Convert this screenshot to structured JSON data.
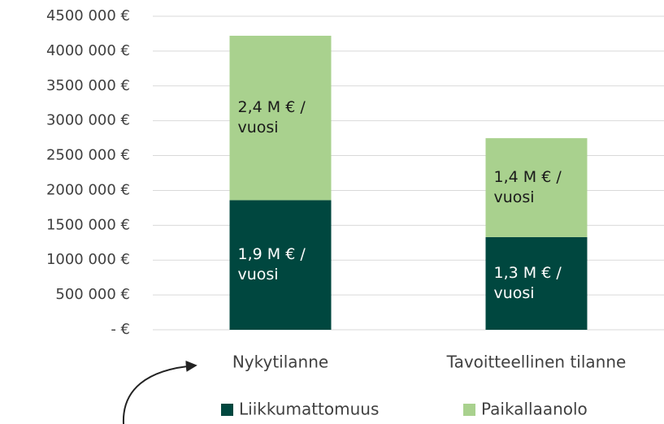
{
  "chart_data": {
    "type": "stacked_bar",
    "categories": [
      "Nykytilanne",
      "Tavoitteellinen tilanne"
    ],
    "series": [
      {
        "name": "Liikkumattomuus",
        "color": "#00473f",
        "values": [
          1860000,
          1330000
        ],
        "value_labels": [
          "1,9 M € / vuosi",
          "1,3 M € / vuosi"
        ]
      },
      {
        "name": "Paikallaanolo",
        "color": "#a9d18e",
        "values": [
          2360000,
          1420000
        ],
        "value_labels": [
          "2,4 M € / vuosi",
          "1,4 M € / vuosi"
        ]
      }
    ],
    "ylim": [
      0,
      4500000
    ],
    "yticks": [
      {
        "value": 0,
        "label": "-  €"
      },
      {
        "value": 500000,
        "label": "500 000 €"
      },
      {
        "value": 1000000,
        "label": "1000 000 €"
      },
      {
        "value": 1500000,
        "label": "1500 000 €"
      },
      {
        "value": 2000000,
        "label": "2000 000 €"
      },
      {
        "value": 2500000,
        "label": "2500 000 €"
      },
      {
        "value": 3000000,
        "label": "3000 000 €"
      },
      {
        "value": 3500000,
        "label": "3500 000 €"
      },
      {
        "value": 4000000,
        "label": "4000 000 €"
      },
      {
        "value": 4500000,
        "label": "4500 000 €"
      }
    ],
    "grid": true,
    "legend": "bottom"
  }
}
